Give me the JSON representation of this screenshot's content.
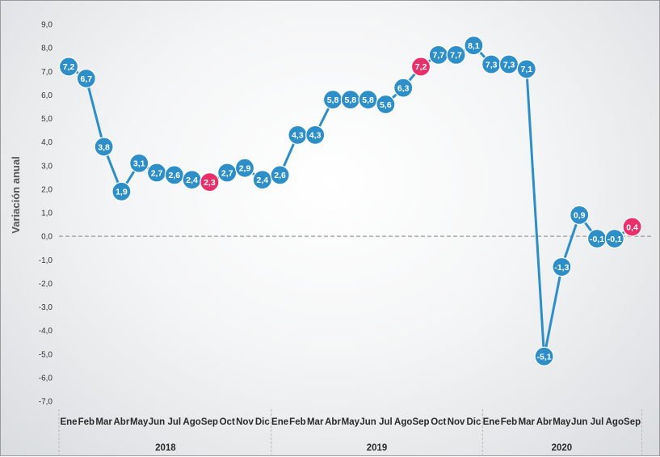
{
  "chart_data": {
    "type": "line",
    "ylabel": "Variación anual",
    "xlabel": "",
    "ylim": [
      -7.0,
      9.0
    ],
    "ytick_labels": [
      "9,0",
      "8,0",
      "7,0",
      "6,0",
      "5,0",
      "4,0",
      "3,0",
      "2,0",
      "1,0",
      "0,0",
      "-1,0",
      "-2,0",
      "-3,0",
      "-4,0",
      "-5,0",
      "-6,0",
      "-7,0"
    ],
    "categories": [
      "Ene",
      "Feb",
      "Mar",
      "Abr",
      "May",
      "Jun",
      "Jul",
      "Ago",
      "Sep",
      "Oct",
      "Nov",
      "Dic",
      "Ene",
      "Feb",
      "Mar",
      "Abr",
      "May",
      "Jun",
      "Jul",
      "Ago",
      "Sep",
      "Oct",
      "Nov",
      "Dic",
      "Ene",
      "Feb",
      "Mar",
      "Abr",
      "May",
      "Jun",
      "Jul",
      "Ago",
      "Sep"
    ],
    "years": [
      {
        "label": "2018",
        "months": 12
      },
      {
        "label": "2019",
        "months": 12
      },
      {
        "label": "2020",
        "months": 9
      }
    ],
    "series": [
      {
        "values": [
          7.2,
          6.7,
          3.8,
          1.9,
          3.1,
          2.7,
          2.6,
          2.4,
          2.3,
          2.7,
          2.9,
          2.4,
          2.6,
          4.3,
          4.3,
          5.8,
          5.8,
          5.8,
          5.6,
          6.3,
          7.2,
          7.7,
          7.7,
          8.1,
          7.3,
          7.3,
          7.1,
          -5.1,
          -1.3,
          0.9,
          -0.1,
          -0.1,
          0.4
        ],
        "value_labels": [
          "7,2",
          "6,7",
          "3,8",
          "1,9",
          "3,1",
          "2,7",
          "2,6",
          "2,4",
          "2,3",
          "2,7",
          "2,9",
          "2,4",
          "2,6",
          "4,3",
          "4,3",
          "5,8",
          "5,8",
          "5,8",
          "5,6",
          "6,3",
          "7,2",
          "7,7",
          "7,7",
          "8,1",
          "7,3",
          "7,3",
          "7,1",
          "-5,1",
          "-1,3",
          "0,9",
          "-0,1",
          "-0,1",
          "0,4"
        ],
        "highlighted": [
          8,
          20,
          32
        ]
      }
    ],
    "colors": {
      "line": "#2e8fc8",
      "marker": "#2e8fc8",
      "highlight": "#e8306a",
      "zero_line": "#9a9a9a"
    },
    "grid": false,
    "legend": "none"
  }
}
